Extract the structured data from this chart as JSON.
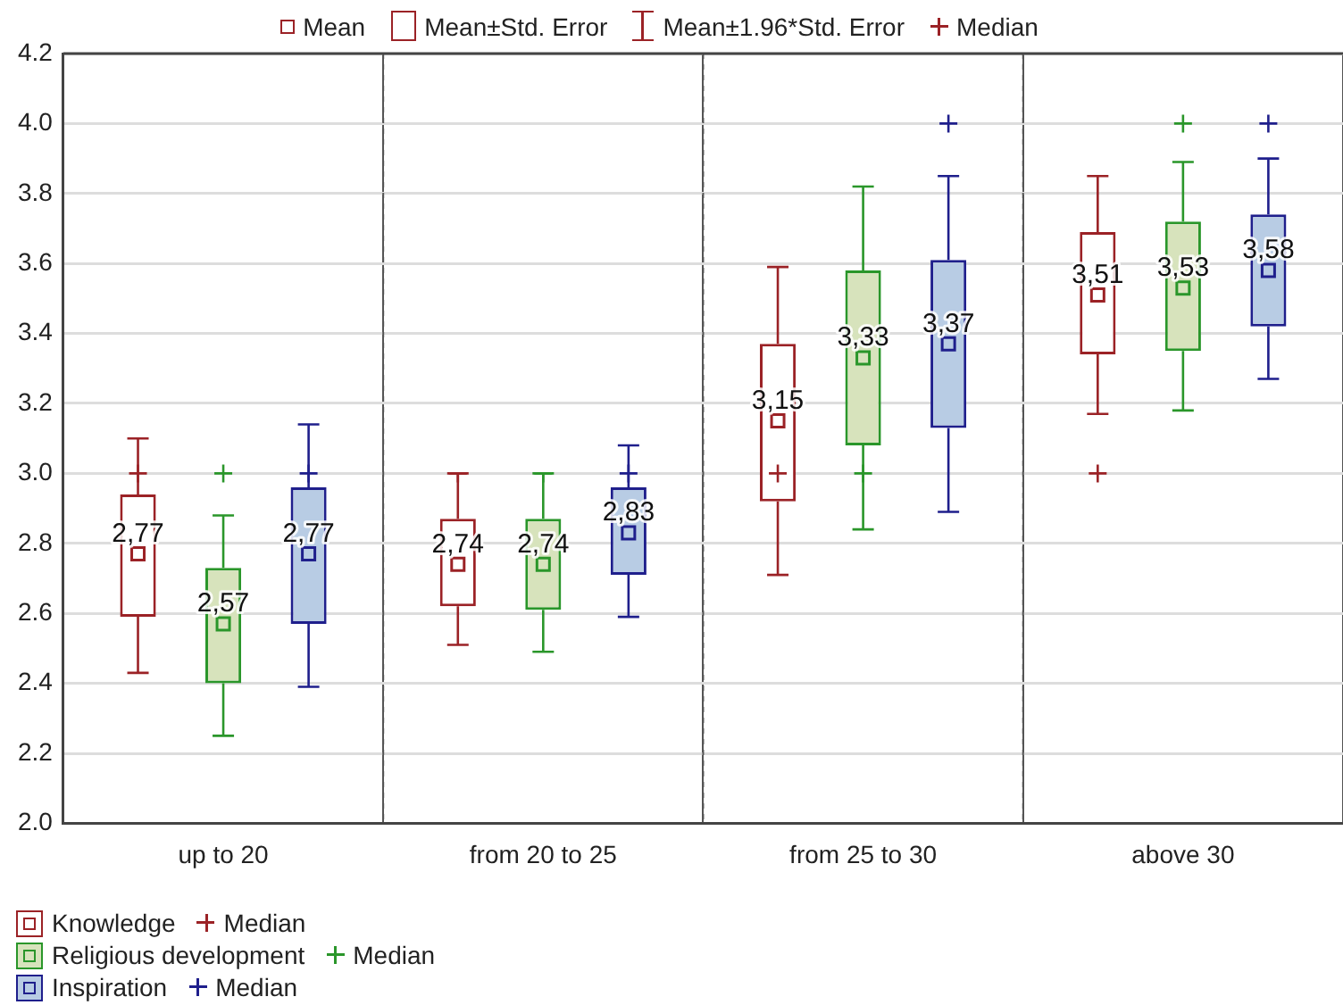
{
  "chart_data": {
    "type": "box",
    "categories": [
      "up to 20",
      "from 20 to 25",
      "from 25 to 30",
      "above 30"
    ],
    "series": [
      {
        "name": "Knowledge",
        "color": "#9b2226",
        "boxes": [
          {
            "low": 2.43,
            "q1": 2.59,
            "median": 3.0,
            "q3": 2.94,
            "high": 3.1,
            "mean": 2.77
          },
          {
            "low": 2.51,
            "q1": 2.62,
            "median": 3.0,
            "q3": 2.87,
            "high": 3.0,
            "mean": 2.74
          },
          {
            "low": 2.71,
            "q1": 2.92,
            "median": 3.0,
            "q3": 3.37,
            "high": 3.59,
            "mean": 3.15
          },
          {
            "low": 3.17,
            "q1": 3.34,
            "median": 3.0,
            "q3": 3.69,
            "high": 3.85,
            "mean": 3.51
          }
        ],
        "value_labels": [
          "2,77",
          "2,74",
          "3,15",
          "3,51"
        ]
      },
      {
        "name": "Religious development",
        "color": "#2a962a",
        "boxes": [
          {
            "low": 2.25,
            "q1": 2.4,
            "median": 3.0,
            "q3": 2.73,
            "high": 2.88,
            "mean": 2.57
          },
          {
            "low": 2.49,
            "q1": 2.61,
            "median": 3.0,
            "q3": 2.87,
            "high": 3.0,
            "mean": 2.74
          },
          {
            "low": 2.84,
            "q1": 3.08,
            "median": 3.0,
            "q3": 3.58,
            "high": 3.82,
            "mean": 3.33
          },
          {
            "low": 3.18,
            "q1": 3.35,
            "median": 4.0,
            "q3": 3.72,
            "high": 3.89,
            "mean": 3.53
          }
        ],
        "value_labels": [
          "2,57",
          "2,74",
          "3,33",
          "3,53"
        ]
      },
      {
        "name": "Inspiration",
        "color": "#1f1f8c",
        "boxes": [
          {
            "low": 2.39,
            "q1": 2.57,
            "median": 3.0,
            "q3": 2.96,
            "high": 3.14,
            "mean": 2.77
          },
          {
            "low": 2.59,
            "q1": 2.71,
            "median": 3.0,
            "q3": 2.96,
            "high": 3.08,
            "mean": 2.83
          },
          {
            "low": 2.89,
            "q1": 3.13,
            "median": 4.0,
            "q3": 3.61,
            "high": 3.85,
            "mean": 3.37
          },
          {
            "low": 3.27,
            "q1": 3.42,
            "median": 4.0,
            "q3": 3.74,
            "high": 3.9,
            "mean": 3.58
          }
        ],
        "value_labels": [
          "2,77",
          "2,83",
          "3,37",
          "3,58"
        ]
      }
    ],
    "ylim": [
      2.0,
      4.2
    ],
    "yticks": [
      {
        "value": 2,
        "label": "2.0"
      },
      2.2,
      2.4,
      2.6,
      2.8,
      {
        "value": 3,
        "label": "3.0"
      },
      3.2,
      3.4,
      3.6,
      3.8,
      {
        "value": 4,
        "label": "4.0"
      },
      4.2
    ],
    "grid": true,
    "legend": "bottom left",
    "annotations": [
      "Mean",
      "Mean±Std. Error",
      "Mean±1.96*Std. Error",
      "Median"
    ]
  }
}
